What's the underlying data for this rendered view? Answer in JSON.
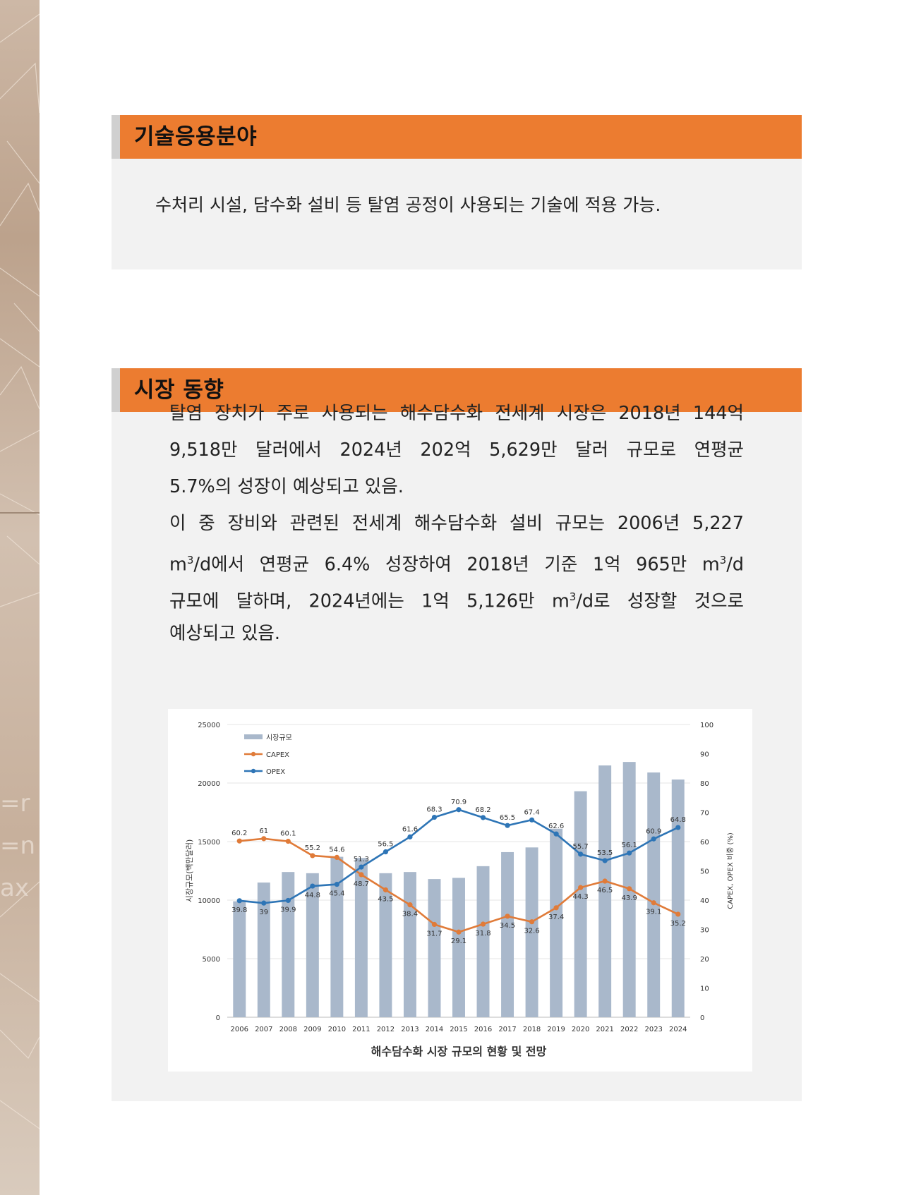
{
  "section1": {
    "title": "기술응용분야",
    "body": "수처리 시설, 담수화 설비 등 탈염 공정이 사용되는 기술에 적용 가능."
  },
  "section2": {
    "title": "시장 동향",
    "para1": [
      "탈염 장치가 주로 사용되는 해수담수화 전세계 시장은 2018년 144억",
      "9,518만 달러에서 2024년 202억 5,629만 달러 규모로 연평균",
      "5.7%의 성장이 예상되고 있음."
    ],
    "para2": [
      "이 중 장비와 관련된 전세계 해수담수화 설비 규모는 2006년 5,227",
      [
        "m",
        "3",
        "/d에서 연평균 6.4% 성장하여 2018년 기준 1억 965만 m",
        "3",
        "/d"
      ],
      [
        "규모에 달하며, 2024년에는 1억 5,126만 m",
        "3",
        "/d로 성장할 것으로"
      ],
      "예상되고 있음."
    ]
  },
  "chart_data": {
    "type": "bar",
    "title": "해수담수화 시장 규모의 현황 및 전망",
    "categories": [
      "2006",
      "2007",
      "2008",
      "2009",
      "2010",
      "2011",
      "2012",
      "2013",
      "2014",
      "2015",
      "2016",
      "2017",
      "2018",
      "2019",
      "2020",
      "2021",
      "2022",
      "2023",
      "2024"
    ],
    "ylabel": "시장규모(백만달러)",
    "y2label": "CAPEX, OPEX 비중 (%)",
    "ylim": [
      0,
      25000
    ],
    "y2lim": [
      0,
      100
    ],
    "yticks": [
      0,
      5000,
      10000,
      15000,
      20000,
      25000
    ],
    "y2ticks": [
      0,
      10,
      20,
      30,
      40,
      50,
      60,
      70,
      80,
      90,
      100
    ],
    "legend_position": "top-left",
    "series": [
      {
        "name": "시장규모",
        "kind": "bar",
        "axis": "left",
        "color": "#a9b8cb",
        "values": [
          9900,
          11500,
          12400,
          12300,
          13700,
          13600,
          12300,
          12400,
          11800,
          11900,
          12900,
          14100,
          14500,
          16100,
          19300,
          21500,
          21800,
          20900,
          20300
        ]
      },
      {
        "name": "CAPEX",
        "kind": "line",
        "axis": "right",
        "color": "#e07b39",
        "values": [
          60.2,
          61,
          60.1,
          55.2,
          54.6,
          48.7,
          43.5,
          38.4,
          31.7,
          29.1,
          31.8,
          34.5,
          32.6,
          37.4,
          44.3,
          46.5,
          43.9,
          39.1,
          35.2
        ]
      },
      {
        "name": "OPEX",
        "kind": "line",
        "axis": "right",
        "color": "#2e75b6",
        "values": [
          39.8,
          39,
          39.9,
          44.8,
          45.4,
          51.3,
          56.5,
          61.6,
          68.3,
          70.9,
          68.2,
          65.5,
          67.4,
          62.6,
          55.7,
          53.5,
          56.1,
          60.9,
          64.8
        ]
      }
    ]
  }
}
